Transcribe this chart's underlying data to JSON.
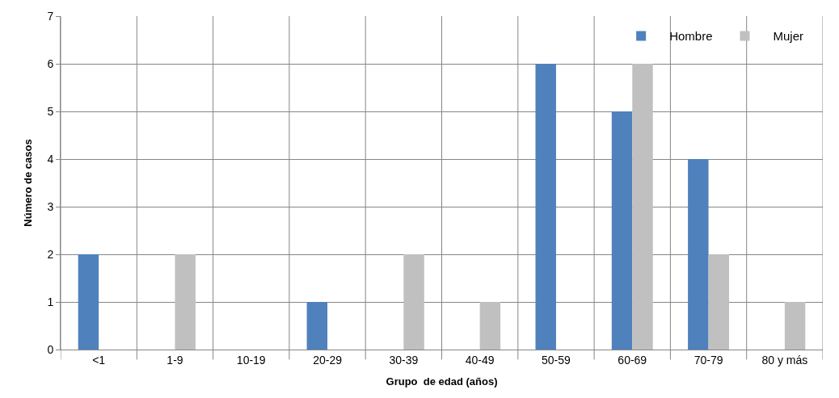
{
  "chart_data": {
    "type": "bar",
    "xlabel": "Grupo  de edad (años)",
    "ylabel": "Número de casos",
    "categories": [
      "<1",
      "1-9",
      "10-19",
      "20-29",
      "30-39",
      "40-49",
      "50-59",
      "60-69",
      "70-79",
      "80 y más"
    ],
    "series": [
      {
        "name": "Hombre",
        "color": "#4f81bd",
        "values": [
          2,
          0,
          0,
          1,
          0,
          0,
          6,
          5,
          4,
          0
        ]
      },
      {
        "name": "Mujer",
        "color": "#c0c0c0",
        "values": [
          0,
          2,
          0,
          0,
          2,
          1,
          0,
          6,
          2,
          1
        ]
      }
    ],
    "ylim": [
      0,
      7
    ],
    "yticks": [
      0,
      1,
      2,
      3,
      4,
      5,
      6,
      7
    ],
    "grid": true,
    "legend": "top right"
  }
}
